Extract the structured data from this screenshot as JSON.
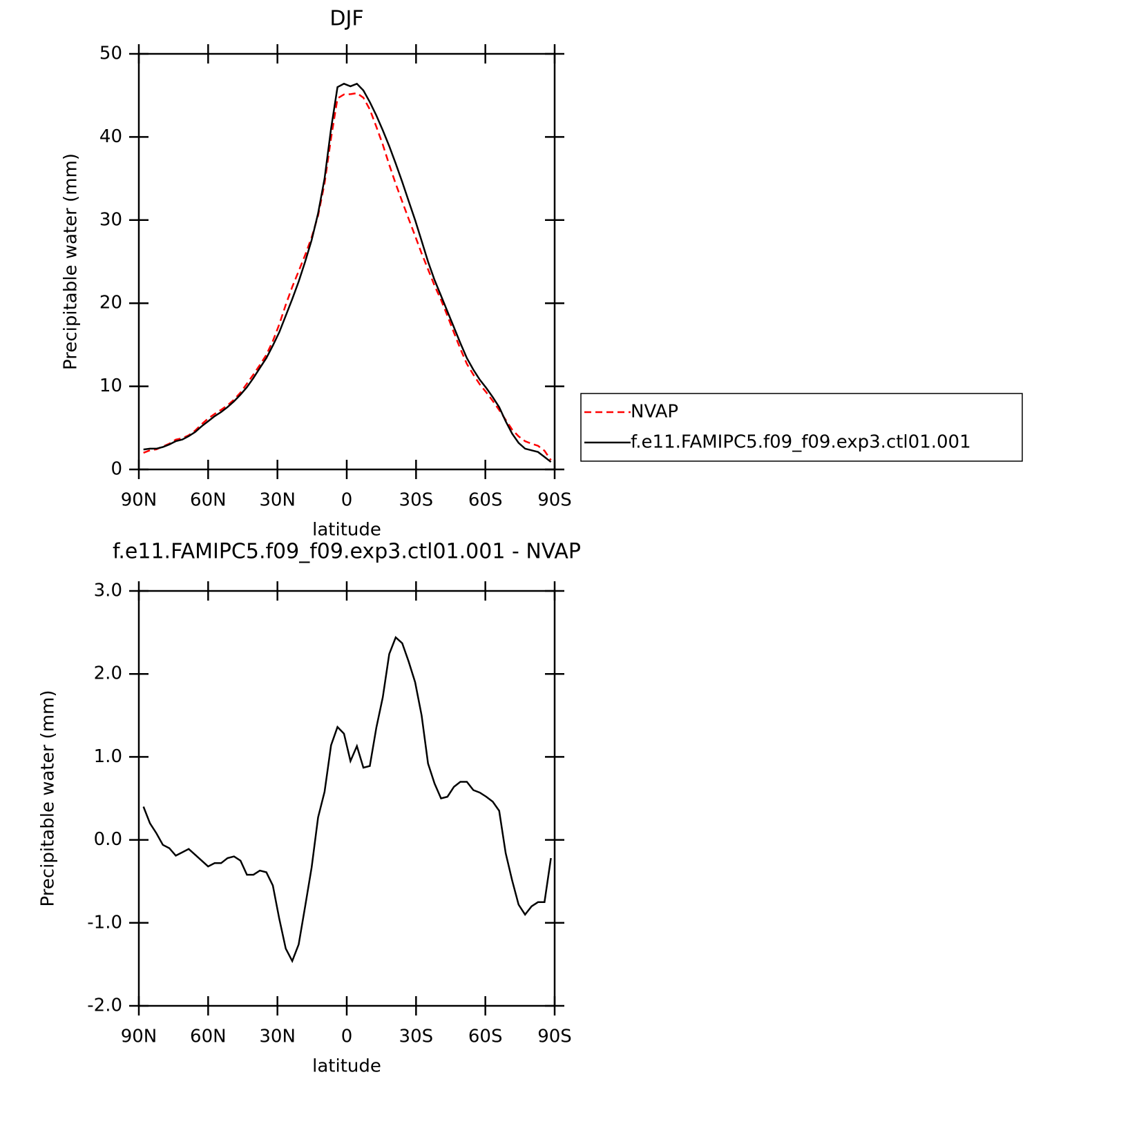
{
  "chart_data": [
    {
      "type": "line",
      "title": "DJF",
      "x_label": "latitude",
      "y_label": "Precipitable water (mm)",
      "x": [
        88,
        85.2,
        82.4,
        79.6,
        76.8,
        74,
        71.2,
        68.4,
        65.6,
        62.8,
        60,
        57.2,
        54.4,
        51.6,
        48.8,
        46,
        43.2,
        40.4,
        37.6,
        34.8,
        32,
        29.2,
        26.4,
        23.6,
        20.8,
        18,
        15.2,
        12.4,
        9.6,
        6.8,
        4,
        1.2,
        -1.6,
        -4.4,
        -7.2,
        -10,
        -12.8,
        -15.6,
        -18.4,
        -21.2,
        -24,
        -26.8,
        -29.6,
        -32.4,
        -35.2,
        -38,
        -40.8,
        -43.6,
        -46.4,
        -49.2,
        -52,
        -54.8,
        -57.6,
        -60.4,
        -63.2,
        -66,
        -68.8,
        -71.6,
        -74.4,
        -77.2,
        -80,
        -82.8,
        -85.6,
        -88.4
      ],
      "series": [
        {
          "name": "NVAP",
          "color": "#ff0000",
          "dashed": true,
          "values": [
            2.0,
            2.3,
            2.42,
            2.76,
            3.1,
            3.59,
            3.75,
            4.11,
            4.68,
            5.45,
            6.12,
            6.68,
            7.18,
            7.72,
            8.4,
            9.25,
            10.32,
            11.42,
            12.57,
            13.79,
            15.45,
            17.45,
            19.81,
            21.96,
            23.86,
            25.8,
            27.93,
            30.53,
            34.42,
            39.86,
            44.64,
            45.12,
            45.15,
            45.27,
            44.73,
            43.31,
            41.25,
            39.08,
            36.66,
            34.36,
            32.23,
            30.15,
            28.1,
            26.0,
            24.08,
            22.12,
            20.4,
            18.48,
            16.46,
            14.5,
            12.7,
            11.4,
            10.23,
            9.28,
            8.24,
            7.15,
            5.96,
            4.79,
            3.98,
            3.4,
            3.1,
            2.85,
            2.25,
            1.12
          ]
        },
        {
          "name": "f.e11.FAMIPC5.f09_f09.exp3.ctl01.001",
          "color": "#000000",
          "dashed": false,
          "values": [
            2.4,
            2.5,
            2.5,
            2.7,
            3.0,
            3.4,
            3.6,
            4.0,
            4.5,
            5.2,
            5.8,
            6.4,
            6.9,
            7.5,
            8.2,
            9.0,
            9.9,
            11.0,
            12.2,
            13.4,
            14.9,
            16.5,
            18.5,
            20.5,
            22.6,
            25.0,
            27.6,
            30.8,
            35.0,
            41.0,
            46.0,
            46.4,
            46.1,
            46.4,
            45.6,
            44.2,
            42.6,
            40.8,
            38.9,
            36.8,
            34.6,
            32.3,
            30.0,
            27.5,
            25.0,
            22.8,
            20.9,
            19.0,
            17.1,
            15.2,
            13.4,
            12.0,
            10.8,
            9.8,
            8.7,
            7.5,
            5.8,
            4.3,
            3.2,
            2.5,
            2.3,
            2.1,
            1.5,
            0.9
          ]
        }
      ],
      "xlim": [
        90,
        -90
      ],
      "xticks": [
        {
          "value": 90,
          "label": "90N"
        },
        {
          "value": 60,
          "label": "60N"
        },
        {
          "value": 30,
          "label": "30N"
        },
        0,
        {
          "value": -30,
          "label": "30S"
        },
        {
          "value": -60,
          "label": "60S"
        },
        {
          "value": -90,
          "label": "90S"
        }
      ],
      "ylim": [
        0,
        50
      ],
      "yticks": [
        0,
        10,
        20,
        30,
        40,
        50
      ],
      "legend": "right"
    },
    {
      "type": "line",
      "title": "f.e11.FAMIPC5.f09_f09.exp3.ctl01.001 - NVAP",
      "x_label": "latitude",
      "y_label": "Precipitable water (mm)",
      "x": [
        88,
        85.2,
        82.4,
        79.6,
        76.8,
        74,
        71.2,
        68.4,
        65.6,
        62.8,
        60,
        57.2,
        54.4,
        51.6,
        48.8,
        46,
        43.2,
        40.4,
        37.6,
        34.8,
        32,
        29.2,
        26.4,
        23.6,
        20.8,
        18,
        15.2,
        12.4,
        9.6,
        6.8,
        4,
        1.2,
        -1.6,
        -4.4,
        -7.2,
        -10,
        -12.8,
        -15.6,
        -18.4,
        -21.2,
        -24,
        -26.8,
        -29.6,
        -32.4,
        -35.2,
        -38,
        -40.8,
        -43.6,
        -46.4,
        -49.2,
        -52,
        -54.8,
        -57.6,
        -60.4,
        -63.2,
        -66,
        -68.8,
        -71.6,
        -74.4,
        -77.2,
        -80,
        -82.8,
        -85.6,
        -88.4
      ],
      "series": [
        {
          "color": "#000000",
          "dashed": false,
          "values": [
            0.4,
            0.2,
            0.08,
            -0.06,
            -0.1,
            -0.19,
            -0.15,
            -0.11,
            -0.18,
            -0.25,
            -0.32,
            -0.28,
            -0.28,
            -0.22,
            -0.2,
            -0.25,
            -0.42,
            -0.42,
            -0.37,
            -0.39,
            -0.55,
            -0.95,
            -1.31,
            -1.46,
            -1.26,
            -0.8,
            -0.33,
            0.27,
            0.58,
            1.14,
            1.36,
            1.28,
            0.95,
            1.13,
            0.87,
            0.89,
            1.35,
            1.72,
            2.24,
            2.44,
            2.37,
            2.15,
            1.9,
            1.5,
            0.92,
            0.68,
            0.5,
            0.52,
            0.64,
            0.7,
            0.7,
            0.6,
            0.57,
            0.52,
            0.46,
            0.35,
            -0.16,
            -0.49,
            -0.78,
            -0.9,
            -0.8,
            -0.75,
            -0.75,
            -0.22
          ]
        }
      ],
      "xlim": [
        90,
        -90
      ],
      "xticks": [
        {
          "value": 90,
          "label": "90N"
        },
        {
          "value": 60,
          "label": "60N"
        },
        {
          "value": 30,
          "label": "30N"
        },
        0,
        {
          "value": -30,
          "label": "30S"
        },
        {
          "value": -60,
          "label": "60S"
        },
        {
          "value": -90,
          "label": "90S"
        }
      ],
      "ylim": [
        -2,
        3
      ],
      "yticks": [
        {
          "value": -2,
          "label": "-2.0"
        },
        {
          "value": -1,
          "label": "-1.0"
        },
        {
          "value": 0,
          "label": "0.0"
        },
        {
          "value": 1,
          "label": "1.0"
        },
        {
          "value": 2,
          "label": "2.0"
        },
        {
          "value": 3,
          "label": "3.0"
        }
      ]
    }
  ]
}
